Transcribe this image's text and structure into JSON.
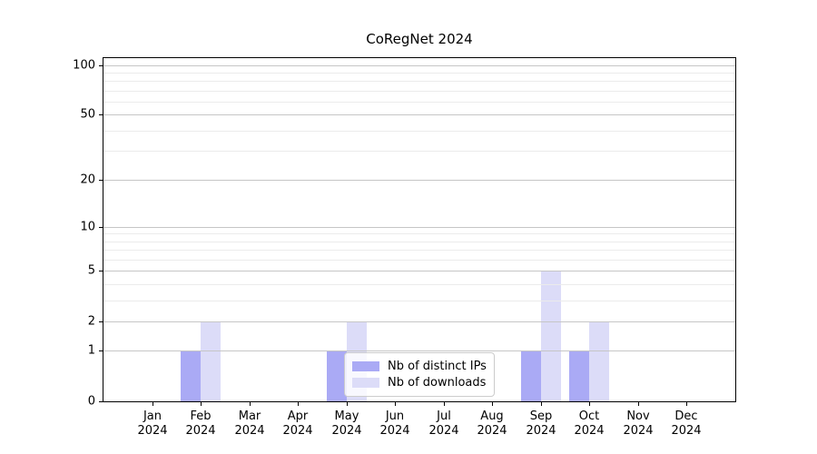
{
  "chart_data": {
    "type": "bar",
    "title": "CoRegNet 2024",
    "categories": [
      "Jan",
      "Feb",
      "Mar",
      "Apr",
      "May",
      "Jun",
      "Jul",
      "Aug",
      "Sep",
      "Oct",
      "Nov",
      "Dec"
    ],
    "category_year": "2024",
    "series": [
      {
        "name": "Nb of distinct IPs",
        "color": "#aaaaf5",
        "values": [
          0,
          1,
          0,
          0,
          1,
          0,
          0,
          0,
          1,
          1,
          0,
          0
        ]
      },
      {
        "name": "Nb of downloads",
        "color": "#dcdcf8",
        "values": [
          0,
          2,
          0,
          0,
          2,
          0,
          0,
          0,
          5,
          2,
          0,
          0
        ]
      }
    ],
    "yscale": "log1p",
    "ylim": [
      0,
      110
    ],
    "y_major_ticks": [
      0,
      1,
      2,
      5,
      10,
      20,
      50,
      100
    ],
    "y_minor_gridlines": [
      3,
      4,
      6,
      7,
      8,
      9,
      30,
      40,
      60,
      70,
      80,
      90
    ],
    "grid": "horizontal",
    "legend_position": "lower center",
    "colors": {
      "major_grid": "#c6c6c6",
      "minor_grid": "#ebebeb",
      "spine": "#000000",
      "legend_border": "#cccccc"
    }
  }
}
